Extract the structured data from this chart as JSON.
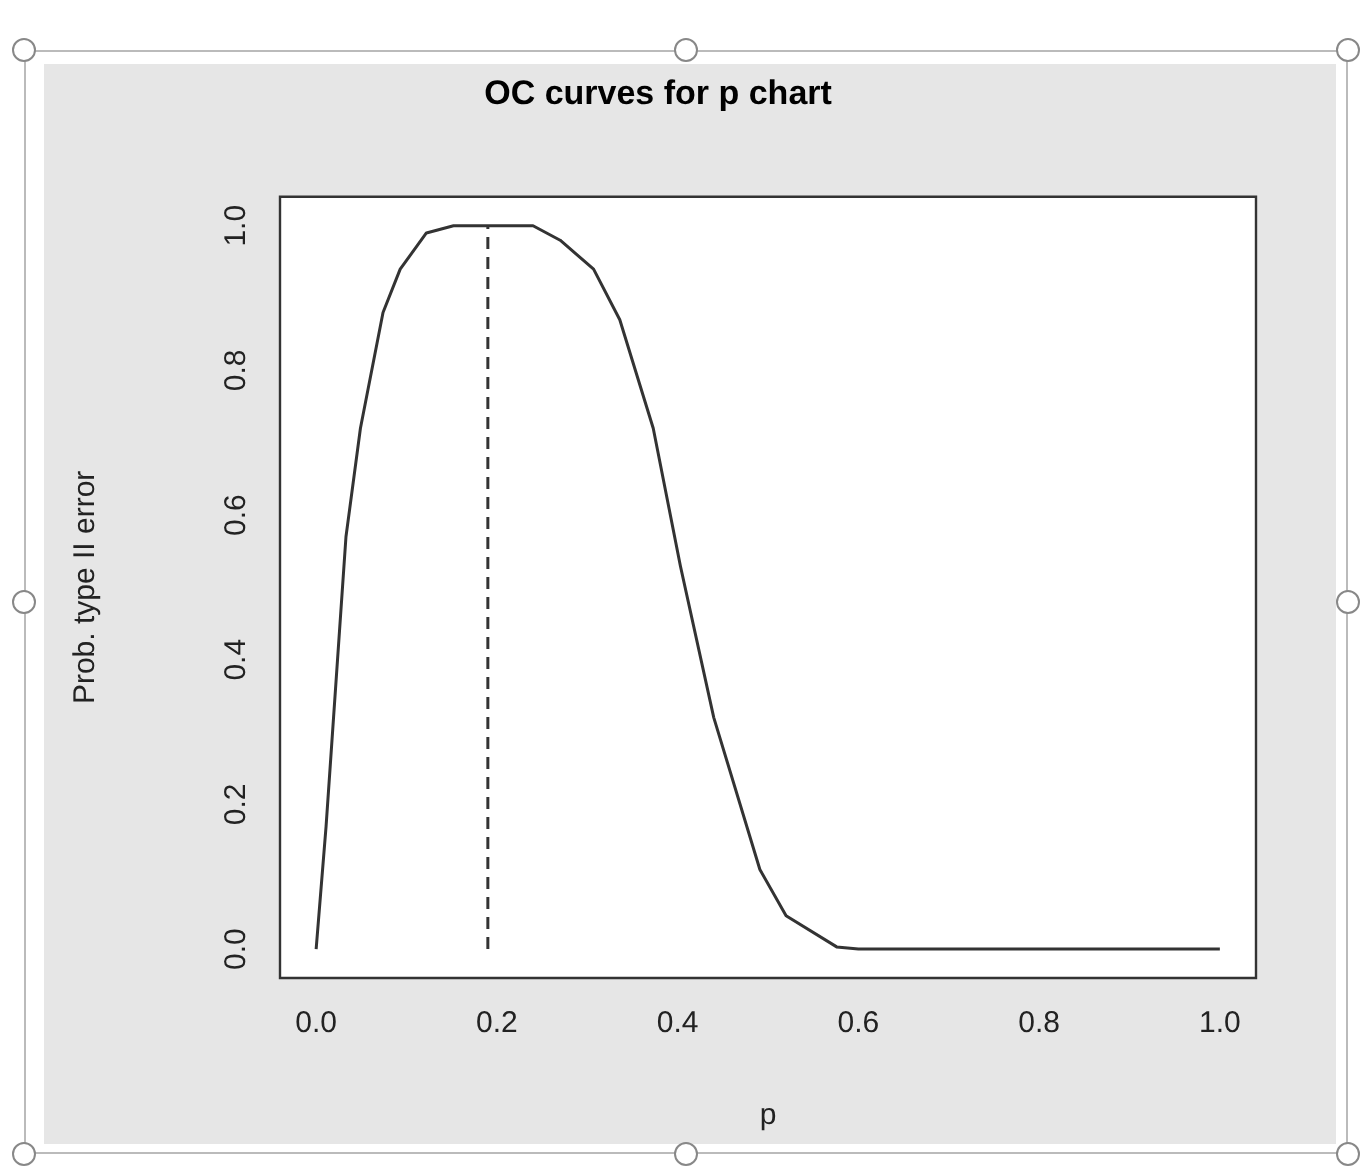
{
  "chart_data": {
    "type": "line",
    "title": "OC curves for p chart",
    "xlabel": "p",
    "ylabel": "Prob. type II error",
    "x": [
      0,
      0.011,
      0.033,
      0.049,
      0.074,
      0.093,
      0.122,
      0.152,
      0.24,
      0.27,
      0.307,
      0.336,
      0.373,
      0.403,
      0.44,
      0.491,
      0.52,
      0.576,
      0.6,
      1.0
    ],
    "values": [
      0,
      0.17,
      0.57,
      0.72,
      0.88,
      0.94,
      0.99,
      1.0,
      1.0,
      0.98,
      0.94,
      0.87,
      0.72,
      0.53,
      0.32,
      0.11,
      0.046,
      0.003,
      0,
      0
    ],
    "color": "#333333",
    "marker": "none",
    "line_style": "solid",
    "xlim": [
      -0.04,
      1.04
    ],
    "xticks": [
      {
        "value": 0,
        "label": "0.0"
      },
      0.2,
      0.4,
      0.6,
      0.8,
      {
        "value": 1,
        "label": "1.0"
      }
    ],
    "ylim": [
      -0.04,
      1.04
    ],
    "yticks": [
      {
        "value": 0,
        "label": "0.0"
      },
      0.2,
      0.4,
      0.6,
      0.8,
      {
        "value": 1,
        "label": "1.0"
      }
    ],
    "ref_lines": [
      {
        "axis": "x",
        "value": 0.19,
        "color": "#333333",
        "line_style": "dashed"
      }
    ],
    "grid": false,
    "legend": false
  }
}
